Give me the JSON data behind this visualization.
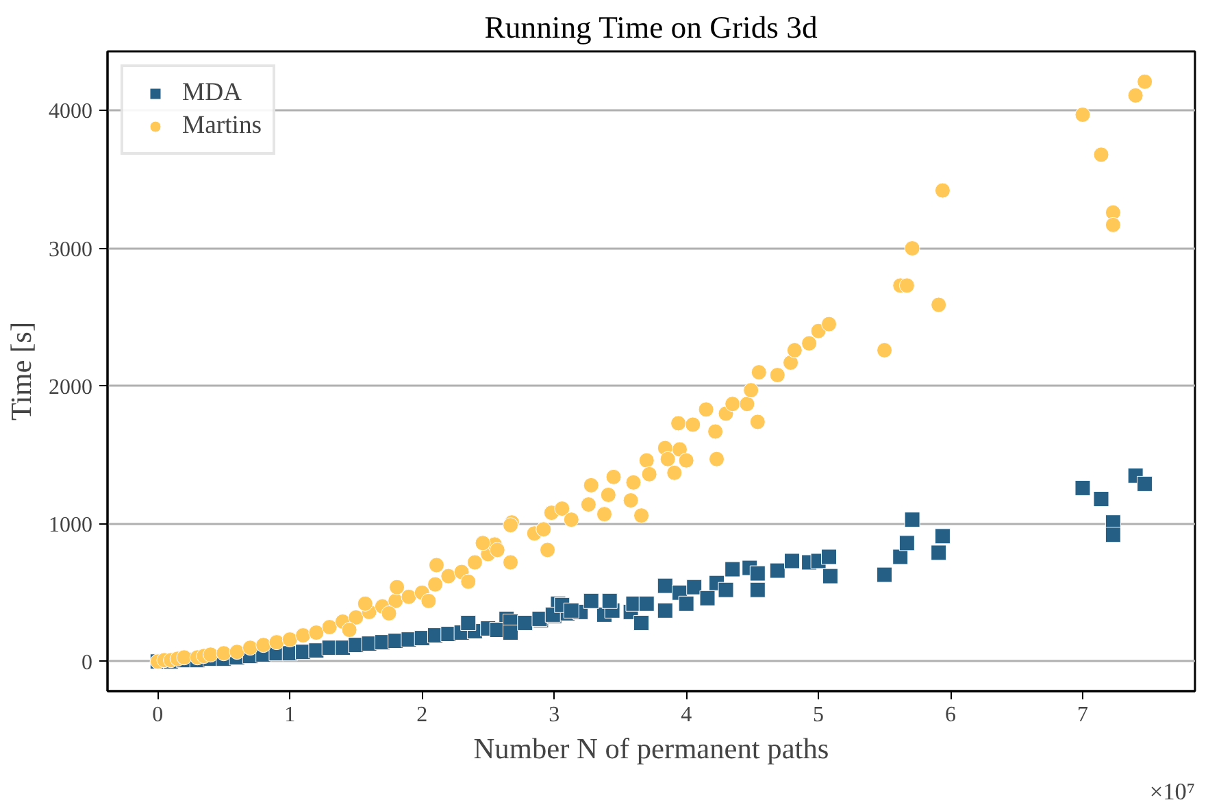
{
  "chart_data": {
    "type": "scatter",
    "title": "Running Time on Grids 3d",
    "xlabel": "Number N of permanent paths",
    "ylabel": "Time [s]",
    "annotations": [
      "×10⁷"
    ],
    "xlim": [
      -0.38,
      7.85
    ],
    "ylim": [
      -215,
      4430
    ],
    "xticks": [
      0,
      1,
      2,
      3,
      4,
      5,
      6,
      7
    ],
    "yticks": [
      0,
      1000,
      2000,
      3000,
      4000
    ],
    "grid": "y",
    "legend": "top left",
    "series": [
      {
        "name": "MDA",
        "color": "#255f85",
        "marker": "square",
        "x": [
          0,
          0.1,
          0.2,
          0.3,
          0.4,
          0.5,
          0.6,
          0.7,
          0.8,
          0.9,
          1.0,
          1.1,
          1.2,
          1.3,
          1.4,
          1.5,
          1.6,
          1.7,
          1.8,
          1.9,
          2.0,
          2.1,
          2.2,
          2.3,
          2.4,
          2.5,
          2.9,
          3.0,
          3.1,
          3.2,
          2.64,
          2.35,
          3.03,
          2.57,
          2.67,
          2.67,
          2.78,
          2.89,
          2.99,
          3.06,
          3.13,
          3.38,
          3.28,
          3.44,
          3.42,
          3.58,
          3.6,
          3.66,
          3.7,
          3.84,
          3.84,
          3.95,
          4.0,
          4.06,
          4.16,
          4.23,
          4.3,
          4.35,
          4.54,
          4.48,
          4.54,
          4.69,
          4.8,
          4.93,
          5.0,
          5.08,
          5.09,
          5.5,
          5.62,
          5.67,
          5.71,
          5.91,
          5.94,
          7.0,
          7.14,
          7.23,
          7.23,
          7.4,
          7.47
        ],
        "values": [
          0,
          0,
          10,
          10,
          20,
          20,
          30,
          40,
          50,
          60,
          60,
          70,
          80,
          100,
          100,
          120,
          130,
          140,
          150,
          160,
          170,
          190,
          200,
          210,
          220,
          240,
          300,
          330,
          350,
          360,
          310,
          280,
          420,
          230,
          290,
          210,
          280,
          310,
          340,
          410,
          370,
          340,
          440,
          370,
          440,
          360,
          420,
          280,
          420,
          550,
          370,
          500,
          420,
          540,
          460,
          570,
          520,
          670,
          520,
          680,
          640,
          660,
          730,
          720,
          730,
          760,
          620,
          630,
          760,
          860,
          1030,
          790,
          910,
          1260,
          1180,
          1010,
          920,
          1350,
          1290
        ]
      },
      {
        "name": "Martins",
        "color": "#ffc857",
        "marker": "circle",
        "x": [
          0,
          0.05,
          0.1,
          0.15,
          0.2,
          0.3,
          0.35,
          0.4,
          0.5,
          0.6,
          0.7,
          0.8,
          0.9,
          1.0,
          1.1,
          1.2,
          1.3,
          1.4,
          1.5,
          1.6,
          1.7,
          1.8,
          1.9,
          2.0,
          2.1,
          2.2,
          2.3,
          2.4,
          2.5,
          1.45,
          1.75,
          2.05,
          2.35,
          2.55,
          2.68,
          2.46,
          2.11,
          1.81,
          1.57,
          2.57,
          2.67,
          2.67,
          2.85,
          2.92,
          2.95,
          2.98,
          3.06,
          3.13,
          3.26,
          3.28,
          3.38,
          3.41,
          3.45,
          3.58,
          3.6,
          3.66,
          3.7,
          3.72,
          3.84,
          3.86,
          3.91,
          3.94,
          3.95,
          4.0,
          4.05,
          4.15,
          4.22,
          4.23,
          4.3,
          4.35,
          4.46,
          4.49,
          4.54,
          4.55,
          4.69,
          4.79,
          4.82,
          4.93,
          5.0,
          5.08,
          5.5,
          5.62,
          5.67,
          5.71,
          5.91,
          5.94,
          7.0,
          7.14,
          7.23,
          7.23,
          7.4,
          7.47
        ],
        "values": [
          0,
          10,
          10,
          20,
          30,
          30,
          40,
          50,
          60,
          70,
          100,
          120,
          140,
          160,
          190,
          210,
          250,
          290,
          320,
          360,
          400,
          440,
          470,
          500,
          560,
          620,
          650,
          720,
          780,
          230,
          350,
          440,
          580,
          850,
          1010,
          860,
          700,
          540,
          420,
          810,
          990,
          720,
          930,
          960,
          810,
          1080,
          1110,
          1030,
          1140,
          1280,
          1070,
          1210,
          1340,
          1170,
          1300,
          1060,
          1460,
          1360,
          1550,
          1470,
          1370,
          1730,
          1540,
          1460,
          1720,
          1830,
          1670,
          1470,
          1800,
          1870,
          1870,
          1970,
          1740,
          2100,
          2080,
          2170,
          2260,
          2310,
          2400,
          2450,
          2260,
          2730,
          2730,
          3000,
          2590,
          3420,
          3970,
          3680,
          3260,
          3170,
          4110,
          4210
        ]
      }
    ]
  }
}
